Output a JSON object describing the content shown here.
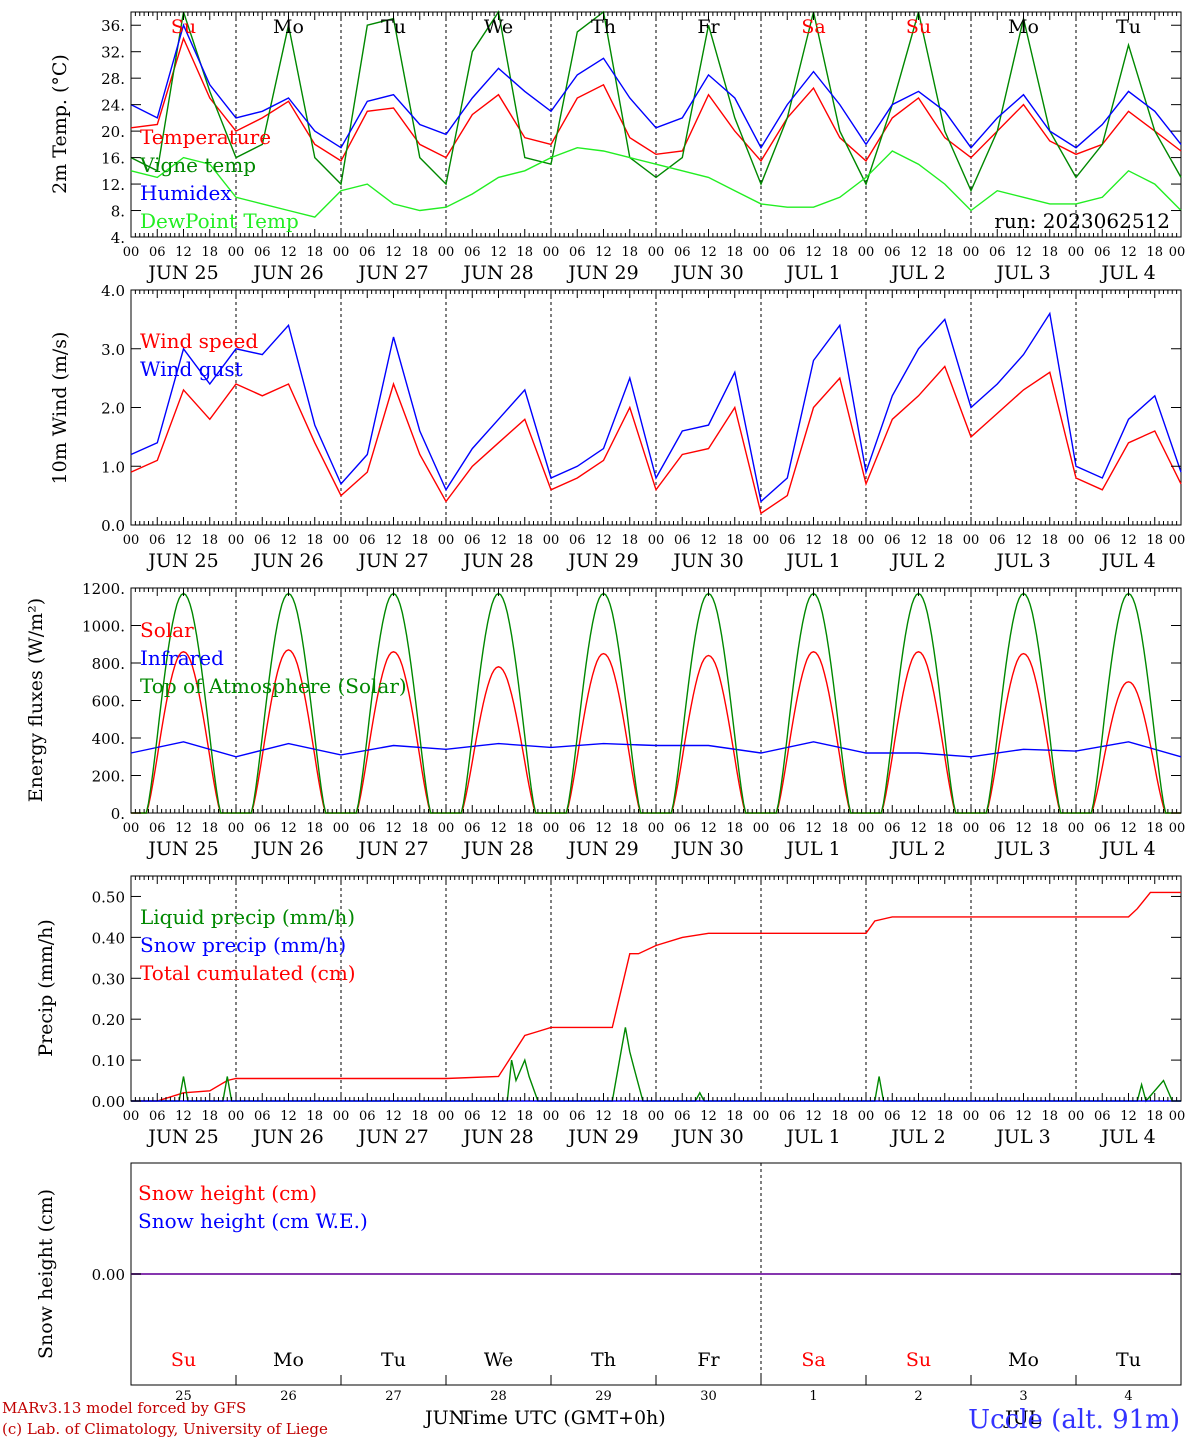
{
  "run_label": "run: 2023062512",
  "footer": {
    "model": "MARv3.13 model forced by GFS",
    "credit": "(c) Lab. of Climatology, University of Liege",
    "xlabel": "Time UTC (GMT+0h)",
    "month_left": "JUN",
    "month_right": "JUL",
    "station": "Uccle (alt. 91m)"
  },
  "colors": {
    "red": "#ff0000",
    "green": "#008800",
    "lightgreen": "#22ee22",
    "blue": "#0000ff",
    "purple": "#8833aa",
    "sunday": "#ff0000"
  },
  "time_axis": {
    "hour_ticks": [
      "00",
      "06",
      "12",
      "18"
    ],
    "end_tick": "00",
    "dates": [
      "JUN 25",
      "JUN 26",
      "JUN 27",
      "JUN 28",
      "JUN 29",
      "JUN 30",
      "JUL  1",
      "JUL  2",
      "JUL  3",
      "JUL  4"
    ],
    "day_names": [
      "Su",
      "Mo",
      "Tu",
      "We",
      "Th",
      "Fr",
      "Sa",
      "Su",
      "Mo",
      "Tu"
    ],
    "weekend": [
      true,
      false,
      false,
      false,
      false,
      false,
      true,
      true,
      false,
      false
    ],
    "day_numbers": [
      "25",
      "26",
      "27",
      "28",
      "29",
      "30",
      "1",
      "2",
      "3",
      "4"
    ]
  },
  "chart_data": [
    {
      "type": "line",
      "ylabel": "2m Temp. (°C)",
      "ylim": [
        4,
        38
      ],
      "yticks": [
        "4.",
        "8.",
        "12.",
        "16.",
        "20.",
        "24.",
        "28.",
        "32.",
        "36."
      ],
      "legend": [
        "Temperature",
        "Vigne temp",
        "Humidex",
        "DewPoint Temp"
      ],
      "series": [
        {
          "name": "Temperature",
          "color": "red",
          "x_hours": [
            0,
            6,
            12,
            18,
            24,
            30,
            36,
            42,
            48,
            54,
            60,
            66,
            72,
            78,
            84,
            90,
            96,
            102,
            108,
            114,
            120,
            126,
            132,
            138,
            144,
            150,
            156,
            162,
            168,
            174,
            180,
            186,
            192,
            198,
            204,
            210,
            216,
            222,
            228,
            234,
            240
          ],
          "values": [
            20.5,
            21,
            34,
            25,
            20,
            22,
            24.5,
            18,
            15.5,
            23,
            23.5,
            18,
            16,
            22.5,
            25.5,
            19,
            18,
            25,
            27,
            19,
            16.5,
            17,
            25.5,
            20,
            15.5,
            22,
            26.5,
            19,
            15.5,
            22,
            25,
            19,
            16,
            20,
            24,
            18.5,
            16.5,
            18,
            23,
            20,
            17
          ]
        },
        {
          "name": "Vigne temp",
          "color": "green",
          "x_hours": [
            0,
            6,
            12,
            18,
            24,
            30,
            36,
            42,
            48,
            54,
            60,
            66,
            72,
            78,
            84,
            90,
            96,
            102,
            108,
            114,
            120,
            126,
            132,
            138,
            144,
            150,
            156,
            162,
            168,
            174,
            180,
            186,
            192,
            198,
            204,
            210,
            216,
            222,
            228,
            234,
            240
          ],
          "values": [
            16,
            14,
            38,
            26,
            16,
            18,
            36,
            16,
            12,
            36,
            37,
            16,
            12,
            32,
            38,
            16,
            15,
            35,
            38,
            16,
            13,
            16,
            36,
            22,
            12,
            22,
            38,
            20,
            12,
            24,
            38,
            20,
            11,
            20,
            37,
            20,
            13,
            18,
            33,
            20,
            13
          ]
        },
        {
          "name": "Humidex",
          "color": "blue",
          "x_hours": [
            0,
            6,
            12,
            18,
            24,
            30,
            36,
            42,
            48,
            54,
            60,
            66,
            72,
            78,
            84,
            90,
            96,
            102,
            108,
            114,
            120,
            126,
            132,
            138,
            144,
            150,
            156,
            162,
            168,
            174,
            180,
            186,
            192,
            198,
            204,
            210,
            216,
            222,
            228,
            234,
            240
          ],
          "values": [
            24,
            22,
            36,
            27,
            22,
            23,
            25,
            20,
            17.5,
            24.5,
            25.5,
            21,
            19.5,
            25,
            29.5,
            26,
            23,
            28.5,
            31,
            25,
            20.5,
            22,
            28.5,
            25,
            17.5,
            24,
            29,
            24,
            18,
            24,
            26,
            23,
            17.5,
            22,
            25.5,
            20,
            17.5,
            21,
            26,
            23,
            18
          ]
        },
        {
          "name": "DewPoint Temp",
          "color": "lightgreen",
          "x_hours": [
            0,
            6,
            12,
            18,
            24,
            30,
            36,
            42,
            48,
            54,
            60,
            66,
            72,
            78,
            84,
            90,
            96,
            102,
            108,
            114,
            120,
            126,
            132,
            138,
            144,
            150,
            156,
            162,
            168,
            174,
            180,
            186,
            192,
            198,
            204,
            210,
            216,
            222,
            228,
            234,
            240
          ],
          "values": [
            14,
            13,
            16,
            15,
            10,
            9,
            8,
            7,
            11,
            12,
            9,
            8,
            8.5,
            10.5,
            13,
            14,
            16,
            17.5,
            17,
            16,
            15,
            14,
            13,
            11,
            9,
            8.5,
            8.5,
            10,
            13,
            17,
            15,
            12,
            8,
            11,
            10,
            9,
            9,
            10,
            14,
            12,
            8
          ]
        }
      ]
    },
    {
      "type": "line",
      "ylabel": "10m Wind (m/s)",
      "ylim": [
        0,
        4
      ],
      "yticks": [
        "0.0",
        "1.0",
        "2.0",
        "3.0",
        "4.0"
      ],
      "legend": [
        "Wind speed",
        "Wind gust"
      ],
      "series": [
        {
          "name": "Wind speed",
          "color": "red",
          "x_hours": [
            0,
            6,
            12,
            18,
            24,
            30,
            36,
            42,
            48,
            54,
            60,
            66,
            72,
            78,
            84,
            90,
            96,
            102,
            108,
            114,
            120,
            126,
            132,
            138,
            144,
            150,
            156,
            162,
            168,
            174,
            180,
            186,
            192,
            198,
            204,
            210,
            216,
            222,
            228,
            234,
            240
          ],
          "values": [
            0.9,
            1.1,
            2.3,
            1.8,
            2.4,
            2.2,
            2.4,
            1.4,
            0.5,
            0.9,
            2.4,
            1.2,
            0.4,
            1.0,
            1.4,
            1.8,
            0.6,
            0.8,
            1.1,
            2.0,
            0.6,
            1.2,
            1.3,
            2.0,
            0.2,
            0.5,
            2.0,
            2.5,
            0.7,
            1.8,
            2.2,
            2.7,
            1.5,
            1.9,
            2.3,
            2.6,
            0.8,
            0.6,
            1.4,
            1.6,
            0.7
          ]
        },
        {
          "name": "Wind gust",
          "color": "blue",
          "x_hours": [
            0,
            6,
            12,
            18,
            24,
            30,
            36,
            42,
            48,
            54,
            60,
            66,
            72,
            78,
            84,
            90,
            96,
            102,
            108,
            114,
            120,
            126,
            132,
            138,
            144,
            150,
            156,
            162,
            168,
            174,
            180,
            186,
            192,
            198,
            204,
            210,
            216,
            222,
            228,
            234,
            240
          ],
          "values": [
            1.2,
            1.4,
            3.0,
            2.4,
            3.0,
            2.9,
            3.4,
            1.7,
            0.7,
            1.2,
            3.2,
            1.6,
            0.6,
            1.3,
            1.8,
            2.3,
            0.8,
            1.0,
            1.3,
            2.5,
            0.8,
            1.6,
            1.7,
            2.6,
            0.4,
            0.8,
            2.8,
            3.4,
            0.9,
            2.2,
            3.0,
            3.5,
            2.0,
            2.4,
            2.9,
            3.6,
            1.0,
            0.8,
            1.8,
            2.2,
            0.9
          ]
        }
      ]
    },
    {
      "type": "line",
      "ylabel": "Energy fluxes (W/m²)",
      "ylim": [
        0,
        1200
      ],
      "yticks": [
        "0.",
        "200.",
        "400.",
        "600.",
        "800.",
        "1000.",
        "1200."
      ],
      "legend": [
        "Solar",
        "Infrared",
        "Top of Atmosphere (Solar)"
      ],
      "series": [
        {
          "name": "Solar",
          "color": "red",
          "daily_peak": [
            860,
            870,
            860,
            780,
            850,
            840,
            860,
            860,
            850,
            700
          ]
        },
        {
          "name": "Infrared",
          "color": "blue",
          "x_hours": [
            0,
            12,
            24,
            36,
            48,
            60,
            72,
            84,
            96,
            108,
            120,
            132,
            144,
            156,
            168,
            180,
            192,
            204,
            216,
            228,
            240
          ],
          "values": [
            320,
            380,
            300,
            370,
            310,
            360,
            340,
            370,
            350,
            370,
            360,
            360,
            320,
            380,
            320,
            320,
            300,
            340,
            330,
            380,
            300
          ]
        },
        {
          "name": "Top of Atmosphere (Solar)",
          "color": "green",
          "daily_peak": [
            1170,
            1170,
            1170,
            1170,
            1170,
            1170,
            1170,
            1170,
            1170,
            1170
          ]
        }
      ]
    },
    {
      "type": "line",
      "ylabel": "Precip (mm/h)",
      "ylim": [
        0,
        0.55
      ],
      "yticks": [
        "0.00",
        "0.10",
        "0.20",
        "0.30",
        "0.40",
        "0.50"
      ],
      "legend": [
        "Liquid precip (mm/h)",
        "Snow precip (mm/h)",
        "Total cumulated (cm)"
      ],
      "series": [
        {
          "name": "Total cumulated (cm)",
          "color": "red",
          "x_hours": [
            0,
            6,
            12,
            18,
            22,
            24,
            30,
            36,
            72,
            84,
            90,
            93,
            96,
            110,
            114,
            116,
            120,
            126,
            132,
            168,
            170,
            174,
            192,
            216,
            228,
            230,
            233,
            240
          ],
          "values": [
            0,
            0,
            0.02,
            0.025,
            0.05,
            0.055,
            0.055,
            0.055,
            0.055,
            0.06,
            0.16,
            0.17,
            0.18,
            0.18,
            0.36,
            0.36,
            0.38,
            0.4,
            0.41,
            0.41,
            0.44,
            0.45,
            0.45,
            0.45,
            0.45,
            0.47,
            0.51,
            0.51
          ]
        },
        {
          "name": "Liquid precip (mm/h)",
          "color": "green",
          "x_hours": [
            0,
            11,
            12,
            13,
            18,
            21,
            22,
            23,
            86,
            87,
            88,
            90,
            91,
            93,
            110,
            112,
            113,
            114,
            115,
            117,
            129,
            130,
            131,
            170,
            171,
            172,
            230,
            231,
            232,
            236,
            238,
            240
          ],
          "values": [
            0,
            0,
            0.06,
            0,
            0,
            0,
            0.06,
            0,
            0,
            0.1,
            0.05,
            0.1,
            0.06,
            0,
            0,
            0.12,
            0.18,
            0.12,
            0.08,
            0,
            0,
            0.02,
            0,
            0,
            0.06,
            0,
            0,
            0.04,
            0,
            0.05,
            0,
            0
          ]
        },
        {
          "name": "Snow precip (mm/h)",
          "color": "blue",
          "x_hours": [
            0,
            240
          ],
          "values": [
            0,
            0
          ]
        }
      ]
    },
    {
      "type": "line",
      "ylabel": "Snow height (cm)",
      "ylim": [
        -1,
        1
      ],
      "yticks": [
        "0.00"
      ],
      "legend": [
        "Snow height (cm)",
        "Snow height (cm W.E.)"
      ],
      "series": [
        {
          "name": "Snow height (cm)",
          "color": "red",
          "x_hours": [
            0,
            240
          ],
          "values": [
            0,
            0
          ]
        },
        {
          "name": "Snow height (cm W.E.)",
          "color": "blue",
          "x_hours": [
            0,
            240
          ],
          "values": [
            0,
            0
          ]
        }
      ]
    }
  ]
}
